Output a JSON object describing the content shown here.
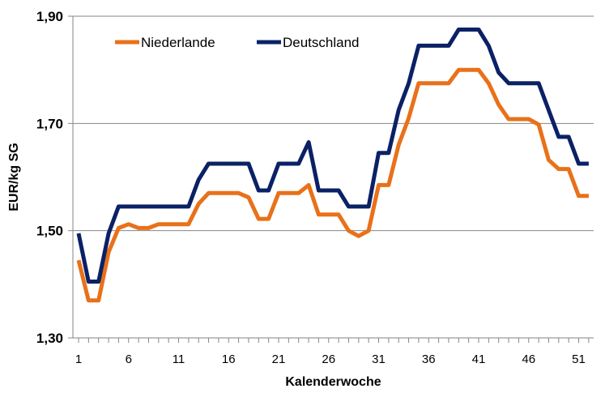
{
  "chart_data": {
    "type": "line",
    "title": "",
    "xlabel": "Kalenderwoche",
    "ylabel": "EUR/kg SG",
    "xlim": [
      1,
      52
    ],
    "ylim": [
      1.3,
      1.9
    ],
    "x_ticks": [
      1,
      6,
      11,
      16,
      21,
      26,
      31,
      36,
      41,
      46,
      51
    ],
    "x_tick_labels": [
      "1",
      "6",
      "11",
      "16",
      "21",
      "26",
      "31",
      "36",
      "41",
      "46",
      "51"
    ],
    "y_ticks": [
      1.3,
      1.5,
      1.7,
      1.9
    ],
    "y_tick_labels": [
      "1,30",
      "1,50",
      "1,70",
      "1,90"
    ],
    "grid": "horizontal",
    "legend_position": "top-left",
    "x": [
      1,
      2,
      3,
      4,
      5,
      6,
      7,
      8,
      9,
      10,
      11,
      12,
      13,
      14,
      15,
      16,
      17,
      18,
      19,
      20,
      21,
      22,
      23,
      24,
      25,
      26,
      27,
      28,
      29,
      30,
      31,
      32,
      33,
      34,
      35,
      36,
      37,
      38,
      39,
      40,
      41,
      42,
      43,
      44,
      45,
      46,
      47,
      48,
      49,
      50,
      51,
      52
    ],
    "series": [
      {
        "name": "Niederlande",
        "color": "#E8711A",
        "values": [
          1.445,
          1.37,
          1.37,
          1.46,
          1.505,
          1.512,
          1.505,
          1.505,
          1.512,
          1.512,
          1.512,
          1.512,
          1.55,
          1.57,
          1.57,
          1.57,
          1.57,
          1.562,
          1.522,
          1.522,
          1.57,
          1.57,
          1.57,
          1.585,
          1.53,
          1.53,
          1.53,
          1.5,
          1.49,
          1.5,
          1.585,
          1.585,
          1.66,
          1.71,
          1.775,
          1.775,
          1.775,
          1.775,
          1.8,
          1.8,
          1.8,
          1.775,
          1.735,
          1.708,
          1.708,
          1.708,
          1.698,
          1.632,
          1.615,
          1.615,
          1.565,
          1.565
        ]
      },
      {
        "name": "Deutschland",
        "color": "#0B2166",
        "values": [
          1.495,
          1.405,
          1.405,
          1.495,
          1.545,
          1.545,
          1.545,
          1.545,
          1.545,
          1.545,
          1.545,
          1.545,
          1.595,
          1.625,
          1.625,
          1.625,
          1.625,
          1.625,
          1.575,
          1.575,
          1.625,
          1.625,
          1.625,
          1.665,
          1.575,
          1.575,
          1.575,
          1.545,
          1.545,
          1.545,
          1.645,
          1.645,
          1.725,
          1.775,
          1.845,
          1.845,
          1.845,
          1.845,
          1.875,
          1.875,
          1.875,
          1.845,
          1.795,
          1.775,
          1.775,
          1.775,
          1.775,
          1.725,
          1.675,
          1.675,
          1.625,
          1.625
        ]
      }
    ]
  }
}
